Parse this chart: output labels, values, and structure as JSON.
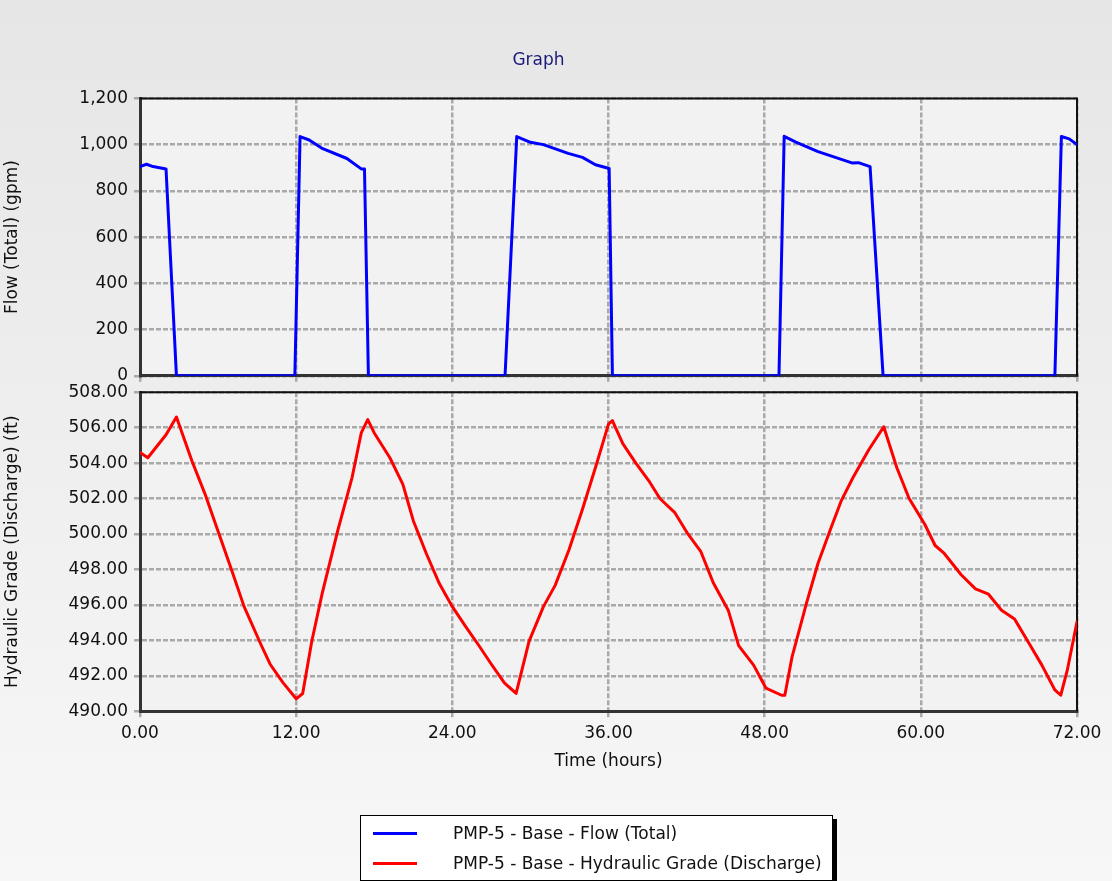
{
  "chart_data": [
    {
      "type": "line",
      "title": "Graph",
      "ylabel": "Flow (Total) (gpm)",
      "xlim": [
        0,
        72
      ],
      "xticks": [
        {
          "value": 0,
          "label": null
        },
        {
          "value": 12,
          "label": null
        },
        {
          "value": 24,
          "label": null
        },
        {
          "value": 36,
          "label": null
        },
        {
          "value": 48,
          "label": null
        },
        {
          "value": 60,
          "label": null
        },
        {
          "value": 72,
          "label": null
        }
      ],
      "ylim": [
        0,
        1200
      ],
      "yticks": [
        0,
        200,
        400,
        600,
        800,
        {
          "value": 1000,
          "label": "1,000"
        },
        {
          "value": 1200,
          "label": "1,200"
        }
      ],
      "grid": true,
      "tick_labels": "y",
      "legend": "bottom",
      "marker": "none",
      "line_style": "solid",
      "series": [
        {
          "name": "PMP-5 - Base - Flow (Total)",
          "color": "#0000ff",
          "x": [
            0,
            0.5,
            1,
            2,
            2.8,
            11.9,
            12.3,
            13.0,
            13.95,
            15.9,
            17.0,
            17.25,
            17.55,
            28.05,
            28.95,
            30.0,
            31.0,
            32.9,
            34.0,
            35.0,
            36.05,
            36.3,
            49.1,
            49.5,
            50.4,
            52.1,
            53.2,
            54.7,
            55.2,
            56.1,
            57.1,
            70.3,
            70.8,
            71.4,
            72
          ],
          "values": [
            905,
            915,
            905,
            895,
            0,
            0,
            1035,
            1020,
            985,
            940,
            895,
            895,
            0,
            0,
            1035,
            1010,
            1000,
            962,
            945,
            913,
            897,
            0,
            0,
            1036,
            1011,
            970,
            949,
            921,
            922,
            905,
            0,
            0,
            1035,
            1025,
            1000
          ]
        }
      ]
    },
    {
      "type": "line",
      "ylabel": "Hydraulic Grade (Discharge) (ft)",
      "xlabel": "Time (hours)",
      "xlim": [
        0,
        72
      ],
      "xticks": [
        {
          "value": 0,
          "label": "0.00"
        },
        {
          "value": 12,
          "label": "12.00"
        },
        {
          "value": 24,
          "label": "24.00"
        },
        {
          "value": 36,
          "label": "36.00"
        },
        {
          "value": 48,
          "label": "48.00"
        },
        {
          "value": 60,
          "label": "60.00"
        },
        {
          "value": 72,
          "label": "72.00"
        }
      ],
      "ylim": [
        490,
        508
      ],
      "yticks": [
        {
          "value": 490,
          "label": "490.00"
        },
        {
          "value": 492,
          "label": "492.00"
        },
        {
          "value": 494,
          "label": "494.00"
        },
        {
          "value": 496,
          "label": "496.00"
        },
        {
          "value": 498,
          "label": "498.00"
        },
        {
          "value": 500,
          "label": "500.00"
        },
        {
          "value": 502,
          "label": "502.00"
        },
        {
          "value": 504,
          "label": "504.00"
        },
        {
          "value": 506,
          "label": "506.00"
        },
        {
          "value": 508,
          "label": "508.00"
        }
      ],
      "grid": true,
      "legend": "bottom",
      "marker": "none",
      "line_style": "solid",
      "series": [
        {
          "name": "PMP-5 - Base - Hydraulic Grade (Discharge)",
          "color": "#ff0000",
          "x": [
            0,
            0.6,
            2.0,
            2.8,
            4.0,
            5.0,
            7.0,
            8.0,
            9.3,
            10.0,
            11.0,
            12.0,
            12.5,
            13.2,
            14.0,
            15.2,
            16.3,
            17.0,
            17.5,
            18.0,
            19.2,
            20.2,
            21.0,
            22.0,
            23.0,
            24.0,
            25.0,
            26.0,
            27.0,
            28.0,
            28.9,
            29.9,
            31.0,
            31.9,
            32.96,
            34.0,
            35.0,
            36.0,
            36.3,
            37.1,
            38.1,
            39.1,
            39.95,
            41.1,
            42.1,
            43.1,
            44.05,
            45.2,
            46.0,
            47.15,
            48.1,
            49.3,
            49.55,
            50.1,
            51.2,
            52.1,
            53.1,
            53.9,
            54.8,
            56.0,
            57.15,
            58.15,
            59.1,
            60.3,
            61.1,
            61.8,
            63.1,
            64.2,
            65.2,
            66.2,
            67.2,
            68.3,
            69.3,
            70.3,
            70.75,
            71.25,
            72
          ],
          "values": [
            504.6,
            504.3,
            505.6,
            506.6,
            504.1,
            502.25,
            498.05,
            495.9,
            493.75,
            492.65,
            491.6,
            490.7,
            491.0,
            493.95,
            496.65,
            500.2,
            503.2,
            505.7,
            506.45,
            505.7,
            504.3,
            502.8,
            500.75,
            498.9,
            497.2,
            495.9,
            494.8,
            493.75,
            492.65,
            491.6,
            491.0,
            493.95,
            495.9,
            497.1,
            499.1,
            501.4,
            503.75,
            506.2,
            506.4,
            505.1,
            504.0,
            503.0,
            502.0,
            501.2,
            500.0,
            499.0,
            497.25,
            495.7,
            493.7,
            492.6,
            491.3,
            490.9,
            490.9,
            493.05,
            496.05,
            498.35,
            500.35,
            501.9,
            503.2,
            504.75,
            506.05,
            503.75,
            502.0,
            500.55,
            499.35,
            498.9,
            497.7,
            496.9,
            496.6,
            495.7,
            495.2,
            493.85,
            492.6,
            491.2,
            490.9,
            492.3,
            495.05
          ]
        }
      ]
    }
  ]
}
